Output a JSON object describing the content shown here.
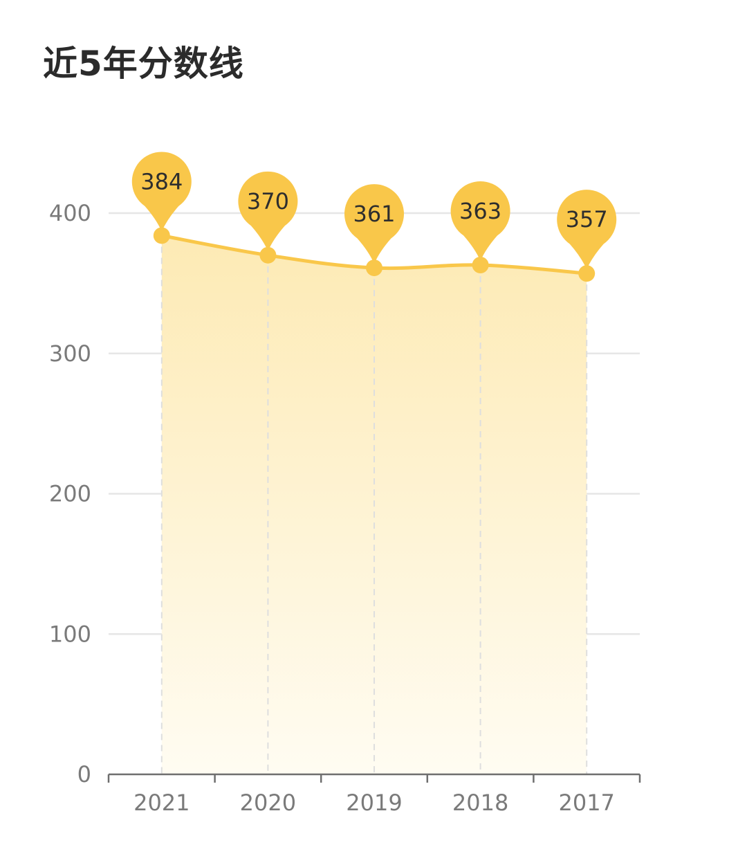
{
  "chart_data": {
    "type": "area",
    "title": "近5年分数线",
    "categories": [
      "2021",
      "2020",
      "2019",
      "2018",
      "2017"
    ],
    "values": [
      384,
      370,
      361,
      363,
      357
    ],
    "data_labels": [
      "384",
      "370",
      "361",
      "363",
      "357"
    ],
    "ylim": [
      0,
      400
    ],
    "y_ticks": [
      "0",
      "100",
      "200",
      "300",
      "400"
    ],
    "xlabel": "",
    "ylabel": "",
    "grid": true,
    "legend": "none",
    "colors": {
      "accent": "#f9c74a",
      "fill_top": "#fdeab4",
      "fill_bottom": "#fffcf2",
      "grid": "#e6e6e6",
      "axis": "#6e6e6e"
    }
  }
}
